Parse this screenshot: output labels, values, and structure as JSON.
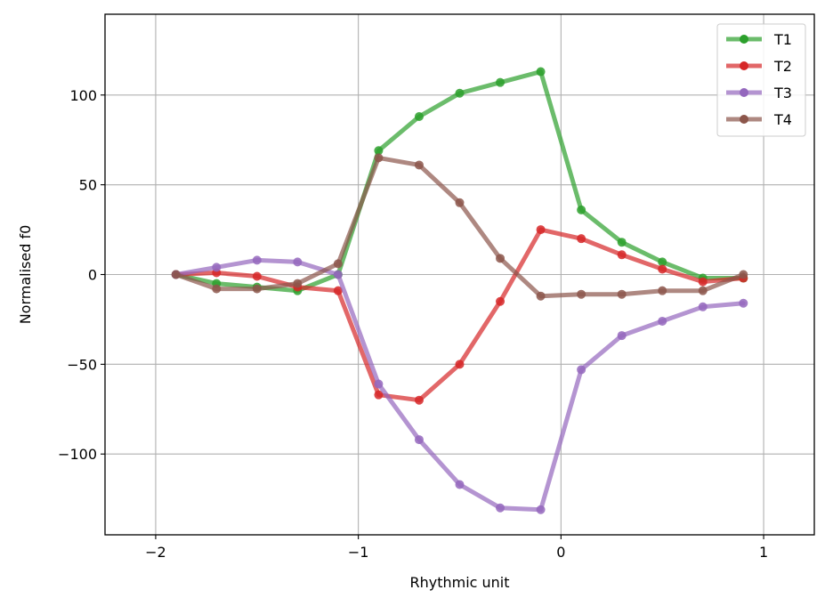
{
  "chart_data": {
    "type": "line",
    "xlabel": "Rhythmic unit",
    "ylabel": "Normalised f0",
    "xlim": [
      -2.25,
      1.25
    ],
    "ylim": [
      -145,
      145
    ],
    "xticks": [
      -2,
      -1,
      0,
      1
    ],
    "xtick_labels": [
      "−2",
      "−1",
      "0",
      "1"
    ],
    "yticks": [
      -100,
      -50,
      0,
      50,
      100
    ],
    "ytick_labels": [
      "−100",
      "−50",
      "0",
      "50",
      "100"
    ],
    "grid": true,
    "legend_position": "top-right",
    "x": [
      -1.9,
      -1.7,
      -1.5,
      -1.3,
      -1.1,
      -0.9,
      -0.7,
      -0.5,
      -0.3,
      -0.1,
      0.1,
      0.3,
      0.5,
      0.7,
      0.9
    ],
    "series": [
      {
        "name": "T1",
        "color": "#2ca02c",
        "values": [
          0,
          -5,
          -7,
          -9,
          0,
          69,
          88,
          101,
          107,
          113,
          36,
          18,
          7,
          -2,
          -2
        ]
      },
      {
        "name": "T2",
        "color": "#d62728",
        "values": [
          0,
          1,
          -1,
          -7,
          -9,
          -67,
          -70,
          -50,
          -15,
          25,
          20,
          11,
          3,
          -4,
          -2
        ]
      },
      {
        "name": "T3",
        "color": "#9467bd",
        "values": [
          0,
          4,
          8,
          7,
          0,
          -61,
          -92,
          -117,
          -130,
          -131,
          -53,
          -34,
          -26,
          -18,
          -16
        ]
      },
      {
        "name": "T4",
        "color": "#8c564b",
        "values": [
          0,
          -8,
          -8,
          -5,
          6,
          65,
          61,
          40,
          9,
          -12,
          -11,
          -11,
          -9,
          -9,
          0
        ]
      }
    ]
  }
}
